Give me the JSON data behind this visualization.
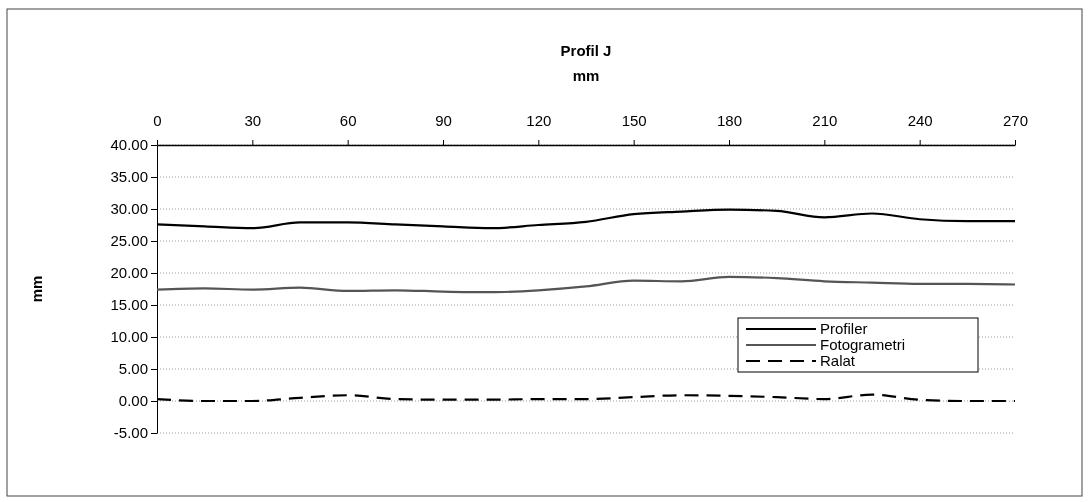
{
  "chart_data": {
    "type": "line",
    "title": "Profil J",
    "xlabel": "mm",
    "ylabel": "mm",
    "x": [
      0,
      15,
      30,
      45,
      60,
      75,
      90,
      105,
      120,
      135,
      150,
      165,
      180,
      195,
      210,
      225,
      240,
      255,
      270
    ],
    "series": [
      {
        "name": "Profiler",
        "color": "#000000",
        "line_style": "solid",
        "values": [
          27.6,
          27.3,
          27.0,
          27.9,
          27.9,
          27.6,
          27.3,
          27.0,
          27.5,
          28.0,
          29.2,
          29.6,
          29.9,
          29.7,
          28.7,
          29.3,
          28.4,
          28.1,
          28.1
        ]
      },
      {
        "name": "Fotogrametri",
        "color": "#555555",
        "line_style": "solid",
        "values": [
          17.4,
          17.6,
          17.4,
          17.7,
          17.2,
          17.3,
          17.1,
          17.0,
          17.3,
          17.9,
          18.8,
          18.7,
          19.4,
          19.2,
          18.7,
          18.5,
          18.3,
          18.3,
          18.2
        ]
      },
      {
        "name": "Ralat",
        "color": "#000000",
        "line_style": "dashed",
        "values": [
          0.3,
          0.0,
          0.0,
          0.5,
          0.9,
          0.3,
          0.2,
          0.2,
          0.3,
          0.3,
          0.6,
          0.9,
          0.8,
          0.6,
          0.3,
          1.0,
          0.2,
          0.0,
          0.0
        ]
      }
    ],
    "xlim": [
      0,
      270
    ],
    "xticks": [
      0,
      30,
      60,
      90,
      120,
      150,
      180,
      210,
      240,
      270
    ],
    "ylim": [
      -5,
      40
    ],
    "yticks": [
      {
        "value": -5,
        "label": "-5.00"
      },
      {
        "value": 0,
        "label": "0.00"
      },
      {
        "value": 5,
        "label": "5.00"
      },
      {
        "value": 10,
        "label": "10.00"
      },
      {
        "value": 15,
        "label": "15.00"
      },
      {
        "value": 20,
        "label": "20.00"
      },
      {
        "value": 25,
        "label": "25.00"
      },
      {
        "value": 30,
        "label": "30.00"
      },
      {
        "value": 35,
        "label": "35.00"
      },
      {
        "value": 40,
        "label": "40.00"
      }
    ],
    "grid": "y",
    "legend": "bottom right",
    "marker": "none"
  }
}
